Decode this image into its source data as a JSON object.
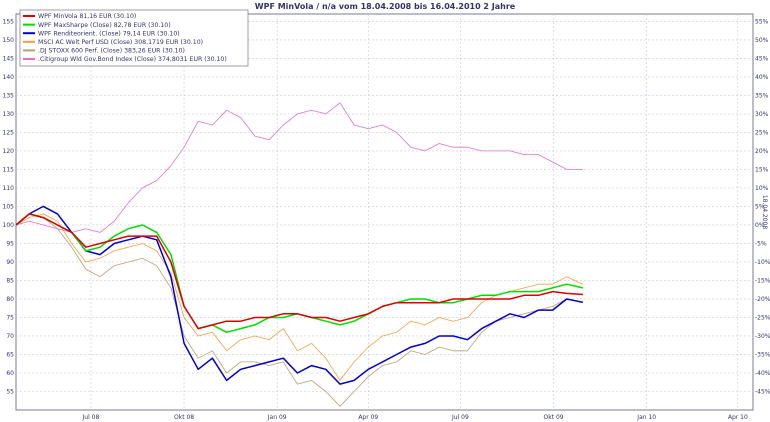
{
  "chart_data": {
    "type": "line",
    "title": "WPF MinVola / n/a vom 18.04.2008 bis 16.04.2010 2 Jahre",
    "right_axis_label": "18.04.2008",
    "xlim": [
      "2008-04-18",
      "2010-04-16"
    ],
    "ylim": [
      50,
      157
    ],
    "y_ticks": [
      55,
      60,
      65,
      70,
      75,
      80,
      85,
      90,
      95,
      100,
      105,
      110,
      115,
      120,
      125,
      130,
      135,
      140,
      145,
      150,
      155
    ],
    "y2_ticks": [
      "-45%",
      "-40%",
      "-35%",
      "-30%",
      "-25%",
      "-20%",
      "-15%",
      "-10%",
      "-5%",
      "0%",
      "5%",
      "10%",
      "15%",
      "20%",
      "25%",
      "30%",
      "35%",
      "40%",
      "45%",
      "50%",
      "55%"
    ],
    "x_ticks": [
      {
        "date": "2008-07-01",
        "label": "Jul 08"
      },
      {
        "date": "2008-10-01",
        "label": "Okt 08"
      },
      {
        "date": "2009-01-01",
        "label": "Jan 09"
      },
      {
        "date": "2009-04-01",
        "label": "Apr 09"
      },
      {
        "date": "2009-07-01",
        "label": "Jul 09"
      },
      {
        "date": "2009-10-01",
        "label": "Okt 09"
      },
      {
        "date": "2010-01-01",
        "label": "Jan 10"
      },
      {
        "date": "2010-04-01",
        "label": "Apr 10"
      }
    ],
    "grid": true,
    "legend_position": "top-left",
    "series": [
      {
        "name": "WPF MinVola 81,16 EUR (30.10)",
        "color": "#dd0000",
        "points": [
          [
            "2008-04-18",
            100
          ],
          [
            "2008-05-01",
            103
          ],
          [
            "2008-05-15",
            102
          ],
          [
            "2008-05-29",
            100
          ],
          [
            "2008-06-12",
            98
          ],
          [
            "2008-06-26",
            94
          ],
          [
            "2008-07-10",
            95
          ],
          [
            "2008-07-24",
            96
          ],
          [
            "2008-08-07",
            97
          ],
          [
            "2008-08-21",
            97
          ],
          [
            "2008-09-04",
            97
          ],
          [
            "2008-09-18",
            90
          ],
          [
            "2008-10-01",
            78
          ],
          [
            "2008-10-15",
            72
          ],
          [
            "2008-10-29",
            73
          ],
          [
            "2008-11-12",
            74
          ],
          [
            "2008-11-26",
            74
          ],
          [
            "2008-12-10",
            75
          ],
          [
            "2008-12-24",
            75
          ],
          [
            "2009-01-07",
            76
          ],
          [
            "2009-01-21",
            76
          ],
          [
            "2009-02-04",
            75
          ],
          [
            "2009-02-18",
            75
          ],
          [
            "2009-03-04",
            74
          ],
          [
            "2009-03-18",
            75
          ],
          [
            "2009-04-01",
            76
          ],
          [
            "2009-04-15",
            78
          ],
          [
            "2009-04-29",
            79
          ],
          [
            "2009-05-13",
            79
          ],
          [
            "2009-05-27",
            79
          ],
          [
            "2009-06-10",
            79
          ],
          [
            "2009-06-24",
            80
          ],
          [
            "2009-07-08",
            80
          ],
          [
            "2009-07-22",
            80
          ],
          [
            "2009-08-05",
            80
          ],
          [
            "2009-08-19",
            80
          ],
          [
            "2009-09-02",
            81
          ],
          [
            "2009-09-16",
            81
          ],
          [
            "2009-09-30",
            82
          ],
          [
            "2009-10-14",
            81.5
          ],
          [
            "2009-10-30",
            81.2
          ]
        ]
      },
      {
        "name": "WPF MaxSharpe (Close) 82,78 EUR (30.10)",
        "color": "#00dd00",
        "points": [
          [
            "2008-04-18",
            100
          ],
          [
            "2008-05-01",
            103
          ],
          [
            "2008-05-15",
            102
          ],
          [
            "2008-05-29",
            100
          ],
          [
            "2008-06-12",
            98
          ],
          [
            "2008-06-26",
            93
          ],
          [
            "2008-07-10",
            94
          ],
          [
            "2008-07-24",
            97
          ],
          [
            "2008-08-07",
            99
          ],
          [
            "2008-08-21",
            100
          ],
          [
            "2008-09-04",
            98
          ],
          [
            "2008-09-18",
            92
          ],
          [
            "2008-10-01",
            78
          ],
          [
            "2008-10-15",
            72
          ],
          [
            "2008-10-29",
            73
          ],
          [
            "2008-11-12",
            71
          ],
          [
            "2008-11-26",
            72
          ],
          [
            "2008-12-10",
            73
          ],
          [
            "2008-12-24",
            75
          ],
          [
            "2009-01-07",
            75
          ],
          [
            "2009-01-21",
            76
          ],
          [
            "2009-02-04",
            75
          ],
          [
            "2009-02-18",
            74
          ],
          [
            "2009-03-04",
            73
          ],
          [
            "2009-03-18",
            74
          ],
          [
            "2009-04-01",
            76
          ],
          [
            "2009-04-15",
            78
          ],
          [
            "2009-04-29",
            79
          ],
          [
            "2009-05-13",
            80
          ],
          [
            "2009-05-27",
            80
          ],
          [
            "2009-06-10",
            79
          ],
          [
            "2009-06-24",
            79
          ],
          [
            "2009-07-08",
            80
          ],
          [
            "2009-07-22",
            81
          ],
          [
            "2009-08-05",
            81
          ],
          [
            "2009-08-19",
            82
          ],
          [
            "2009-09-02",
            82
          ],
          [
            "2009-09-16",
            82
          ],
          [
            "2009-09-30",
            83
          ],
          [
            "2009-10-14",
            84
          ],
          [
            "2009-10-30",
            83
          ]
        ]
      },
      {
        "name": "WPF Renditeorient. (Close) 79,14 EUR (30.10)",
        "color": "#0000cc",
        "points": [
          [
            "2008-04-18",
            100
          ],
          [
            "2008-05-01",
            103
          ],
          [
            "2008-05-15",
            105
          ],
          [
            "2008-05-29",
            103
          ],
          [
            "2008-06-12",
            98
          ],
          [
            "2008-06-26",
            93
          ],
          [
            "2008-07-10",
            92
          ],
          [
            "2008-07-24",
            95
          ],
          [
            "2008-08-07",
            96
          ],
          [
            "2008-08-21",
            97
          ],
          [
            "2008-09-04",
            96
          ],
          [
            "2008-09-18",
            86
          ],
          [
            "2008-10-01",
            68
          ],
          [
            "2008-10-15",
            61
          ],
          [
            "2008-10-29",
            64
          ],
          [
            "2008-11-12",
            58
          ],
          [
            "2008-11-26",
            61
          ],
          [
            "2008-12-10",
            62
          ],
          [
            "2008-12-24",
            63
          ],
          [
            "2009-01-07",
            64
          ],
          [
            "2009-01-21",
            60
          ],
          [
            "2009-02-04",
            62
          ],
          [
            "2009-02-18",
            61
          ],
          [
            "2009-03-04",
            57
          ],
          [
            "2009-03-18",
            58
          ],
          [
            "2009-04-01",
            61
          ],
          [
            "2009-04-15",
            63
          ],
          [
            "2009-04-29",
            65
          ],
          [
            "2009-05-13",
            67
          ],
          [
            "2009-05-27",
            68
          ],
          [
            "2009-06-10",
            70
          ],
          [
            "2009-06-24",
            70
          ],
          [
            "2009-07-08",
            69
          ],
          [
            "2009-07-22",
            72
          ],
          [
            "2009-08-05",
            74
          ],
          [
            "2009-08-19",
            76
          ],
          [
            "2009-09-02",
            75
          ],
          [
            "2009-09-16",
            77
          ],
          [
            "2009-09-30",
            77
          ],
          [
            "2009-10-14",
            80
          ],
          [
            "2009-10-30",
            79.1
          ]
        ]
      },
      {
        "name": "MSCI AC Welt Perf USD (Close) 308,1719 EUR (30.10)",
        "color": "#f0a040",
        "points": [
          [
            "2008-04-18",
            100
          ],
          [
            "2008-05-01",
            102
          ],
          [
            "2008-05-15",
            103
          ],
          [
            "2008-05-29",
            101
          ],
          [
            "2008-06-12",
            95
          ],
          [
            "2008-06-26",
            90
          ],
          [
            "2008-07-10",
            91
          ],
          [
            "2008-07-24",
            93
          ],
          [
            "2008-08-07",
            94
          ],
          [
            "2008-08-21",
            95
          ],
          [
            "2008-09-04",
            93
          ],
          [
            "2008-09-18",
            87
          ],
          [
            "2008-10-01",
            75
          ],
          [
            "2008-10-15",
            70
          ],
          [
            "2008-10-29",
            71
          ],
          [
            "2008-11-12",
            66
          ],
          [
            "2008-11-26",
            69
          ],
          [
            "2008-12-10",
            70
          ],
          [
            "2008-12-24",
            69
          ],
          [
            "2009-01-07",
            72
          ],
          [
            "2009-01-21",
            66
          ],
          [
            "2009-02-04",
            68
          ],
          [
            "2009-02-18",
            64
          ],
          [
            "2009-03-04",
            58
          ],
          [
            "2009-03-18",
            63
          ],
          [
            "2009-04-01",
            67
          ],
          [
            "2009-04-15",
            70
          ],
          [
            "2009-04-29",
            71
          ],
          [
            "2009-05-13",
            74
          ],
          [
            "2009-05-27",
            73
          ],
          [
            "2009-06-10",
            75
          ],
          [
            "2009-06-24",
            74
          ],
          [
            "2009-07-08",
            75
          ],
          [
            "2009-07-22",
            79
          ],
          [
            "2009-08-05",
            81
          ],
          [
            "2009-08-19",
            82
          ],
          [
            "2009-09-02",
            83
          ],
          [
            "2009-09-16",
            84
          ],
          [
            "2009-09-30",
            84
          ],
          [
            "2009-10-14",
            86
          ],
          [
            "2009-10-30",
            84
          ]
        ]
      },
      {
        "name": ".DJ STOXX 600 Perf. (Close) 383,26 EUR (30.10)",
        "color": "#b8a070",
        "points": [
          [
            "2008-04-18",
            100
          ],
          [
            "2008-05-01",
            103
          ],
          [
            "2008-05-15",
            102
          ],
          [
            "2008-05-29",
            99
          ],
          [
            "2008-06-12",
            94
          ],
          [
            "2008-06-26",
            88
          ],
          [
            "2008-07-10",
            86
          ],
          [
            "2008-07-24",
            89
          ],
          [
            "2008-08-07",
            90
          ],
          [
            "2008-08-21",
            91
          ],
          [
            "2008-09-04",
            89
          ],
          [
            "2008-09-18",
            83
          ],
          [
            "2008-10-01",
            70
          ],
          [
            "2008-10-15",
            64
          ],
          [
            "2008-10-29",
            66
          ],
          [
            "2008-11-12",
            60
          ],
          [
            "2008-11-26",
            63
          ],
          [
            "2008-12-10",
            63
          ],
          [
            "2008-12-24",
            62
          ],
          [
            "2009-01-07",
            63
          ],
          [
            "2009-01-21",
            57
          ],
          [
            "2009-02-04",
            58
          ],
          [
            "2009-02-18",
            55
          ],
          [
            "2009-03-04",
            51
          ],
          [
            "2009-03-18",
            55
          ],
          [
            "2009-04-01",
            59
          ],
          [
            "2009-04-15",
            62
          ],
          [
            "2009-04-29",
            63
          ],
          [
            "2009-05-13",
            66
          ],
          [
            "2009-05-27",
            65
          ],
          [
            "2009-06-10",
            67
          ],
          [
            "2009-06-24",
            66
          ],
          [
            "2009-07-08",
            66
          ],
          [
            "2009-07-22",
            71
          ],
          [
            "2009-08-05",
            74
          ],
          [
            "2009-08-19",
            75
          ],
          [
            "2009-09-02",
            76
          ],
          [
            "2009-09-16",
            77
          ],
          [
            "2009-09-30",
            78
          ],
          [
            "2009-10-14",
            80
          ],
          [
            "2009-10-30",
            79
          ]
        ]
      },
      {
        "name": ".Citigroup Wld Gov.Bond Index (Close) 374,8031 EUR (30.10)",
        "color": "#e070c8",
        "points": [
          [
            "2008-04-18",
            100
          ],
          [
            "2008-05-01",
            101
          ],
          [
            "2008-05-15",
            100
          ],
          [
            "2008-05-29",
            99
          ],
          [
            "2008-06-12",
            98
          ],
          [
            "2008-06-26",
            99
          ],
          [
            "2008-07-10",
            98
          ],
          [
            "2008-07-24",
            101
          ],
          [
            "2008-08-07",
            106
          ],
          [
            "2008-08-21",
            110
          ],
          [
            "2008-09-04",
            112
          ],
          [
            "2008-09-18",
            116
          ],
          [
            "2008-10-01",
            121
          ],
          [
            "2008-10-15",
            128
          ],
          [
            "2008-10-29",
            127
          ],
          [
            "2008-11-12",
            131
          ],
          [
            "2008-11-26",
            129
          ],
          [
            "2008-12-10",
            124
          ],
          [
            "2008-12-24",
            123
          ],
          [
            "2009-01-07",
            127
          ],
          [
            "2009-01-21",
            130
          ],
          [
            "2009-02-04",
            131
          ],
          [
            "2009-02-18",
            130
          ],
          [
            "2009-03-04",
            133
          ],
          [
            "2009-03-18",
            127
          ],
          [
            "2009-04-01",
            126
          ],
          [
            "2009-04-15",
            127
          ],
          [
            "2009-04-29",
            125
          ],
          [
            "2009-05-13",
            121
          ],
          [
            "2009-05-27",
            120
          ],
          [
            "2009-06-10",
            122
          ],
          [
            "2009-06-24",
            121
          ],
          [
            "2009-07-08",
            121
          ],
          [
            "2009-07-22",
            120
          ],
          [
            "2009-08-05",
            120
          ],
          [
            "2009-08-19",
            120
          ],
          [
            "2009-09-02",
            119
          ],
          [
            "2009-09-16",
            119
          ],
          [
            "2009-09-30",
            117
          ],
          [
            "2009-10-14",
            115
          ],
          [
            "2009-10-30",
            115
          ]
        ]
      }
    ]
  }
}
